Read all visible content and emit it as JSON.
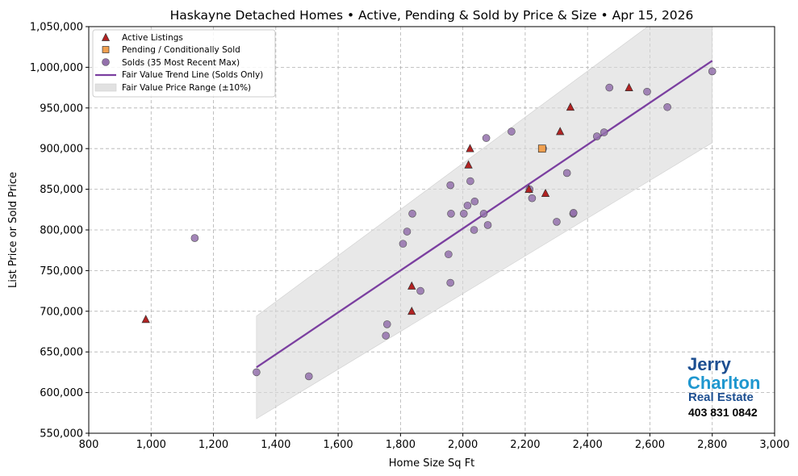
{
  "chart_data": {
    "type": "scatter",
    "title": "Haskayne Detached Homes • Active, Pending & Sold by Price & Size • Apr 15, 2026",
    "xlabel": "Home Size Sq Ft",
    "ylabel": "List Price or Sold Price",
    "xlim": [
      800,
      3000
    ],
    "ylim": [
      550000,
      1050000
    ],
    "x_ticks": [
      800,
      1000,
      1200,
      1400,
      1600,
      1800,
      2000,
      2200,
      2400,
      2600,
      2800,
      3000
    ],
    "x_tick_labels": [
      "800",
      "1,000",
      "1,200",
      "1,400",
      "1,600",
      "1,800",
      "2,000",
      "2,200",
      "2,400",
      "2,600",
      "2,800",
      "3,000"
    ],
    "y_ticks": [
      550000,
      600000,
      650000,
      700000,
      750000,
      800000,
      850000,
      900000,
      950000,
      1000000,
      1050000
    ],
    "y_tick_labels": [
      "550,000",
      "600,000",
      "650,000",
      "700,000",
      "750,000",
      "800,000",
      "850,000",
      "900,000",
      "950,000",
      "1,000,000",
      "1,050,000"
    ],
    "grid": true,
    "legend_position": "top-left",
    "colors": {
      "active": "#b22222",
      "pending": "#f0a050",
      "sold": "#9370ab",
      "trend": "#7b3fa0",
      "band": "#d9d9d9"
    },
    "series": [
      {
        "name": "Active Listings",
        "marker": "triangle",
        "points": [
          [
            983,
            690000
          ],
          [
            1836,
            731000
          ],
          [
            1836,
            700000
          ],
          [
            2023,
            900000
          ],
          [
            2018,
            880000
          ],
          [
            2212,
            850000
          ],
          [
            2265,
            845000
          ],
          [
            2312,
            921000
          ],
          [
            2345,
            951000
          ],
          [
            2533,
            975000
          ]
        ]
      },
      {
        "name": "Pending / Conditionally Sold",
        "marker": "square",
        "points": [
          [
            2254,
            900000
          ]
        ]
      },
      {
        "name": "Solds (35 Most Recent Max)",
        "marker": "circle",
        "points": [
          [
            1140,
            790000
          ],
          [
            1338,
            625000
          ],
          [
            1506,
            620000
          ],
          [
            1753,
            670000
          ],
          [
            1757,
            684000
          ],
          [
            1808,
            783000
          ],
          [
            1821,
            798000
          ],
          [
            1838,
            820000
          ],
          [
            1864,
            725000
          ],
          [
            1954,
            770000
          ],
          [
            1960,
            735000
          ],
          [
            1960,
            855000
          ],
          [
            1962,
            820000
          ],
          [
            2003,
            820000
          ],
          [
            2015,
            830000
          ],
          [
            2024,
            860000
          ],
          [
            2036,
            800000
          ],
          [
            2038,
            835000
          ],
          [
            2067,
            820000
          ],
          [
            2075,
            913000
          ],
          [
            2080,
            806000
          ],
          [
            2156,
            921000
          ],
          [
            2214,
            850000
          ],
          [
            2222,
            839000
          ],
          [
            2257,
            900000
          ],
          [
            2301,
            810000
          ],
          [
            2334,
            870000
          ],
          [
            2354,
            820000
          ],
          [
            2355,
            821000
          ],
          [
            2430,
            915000
          ],
          [
            2453,
            920000
          ],
          [
            2470,
            975000
          ],
          [
            2591,
            970000
          ],
          [
            2656,
            951000
          ],
          [
            2800,
            995000
          ]
        ]
      },
      {
        "name": "Fair Value Trend Line (Solds Only)",
        "type": "line",
        "points": [
          [
            1338,
            631000
          ],
          [
            2800,
            1008000
          ]
        ]
      },
      {
        "name": "Fair Value Price Range (±10%)",
        "type": "band",
        "pct": 0.1
      }
    ]
  },
  "branding": {
    "line1": "Jerry",
    "line2": "Charlton",
    "line3": "Real Estate",
    "phone": "403 831 0842"
  }
}
